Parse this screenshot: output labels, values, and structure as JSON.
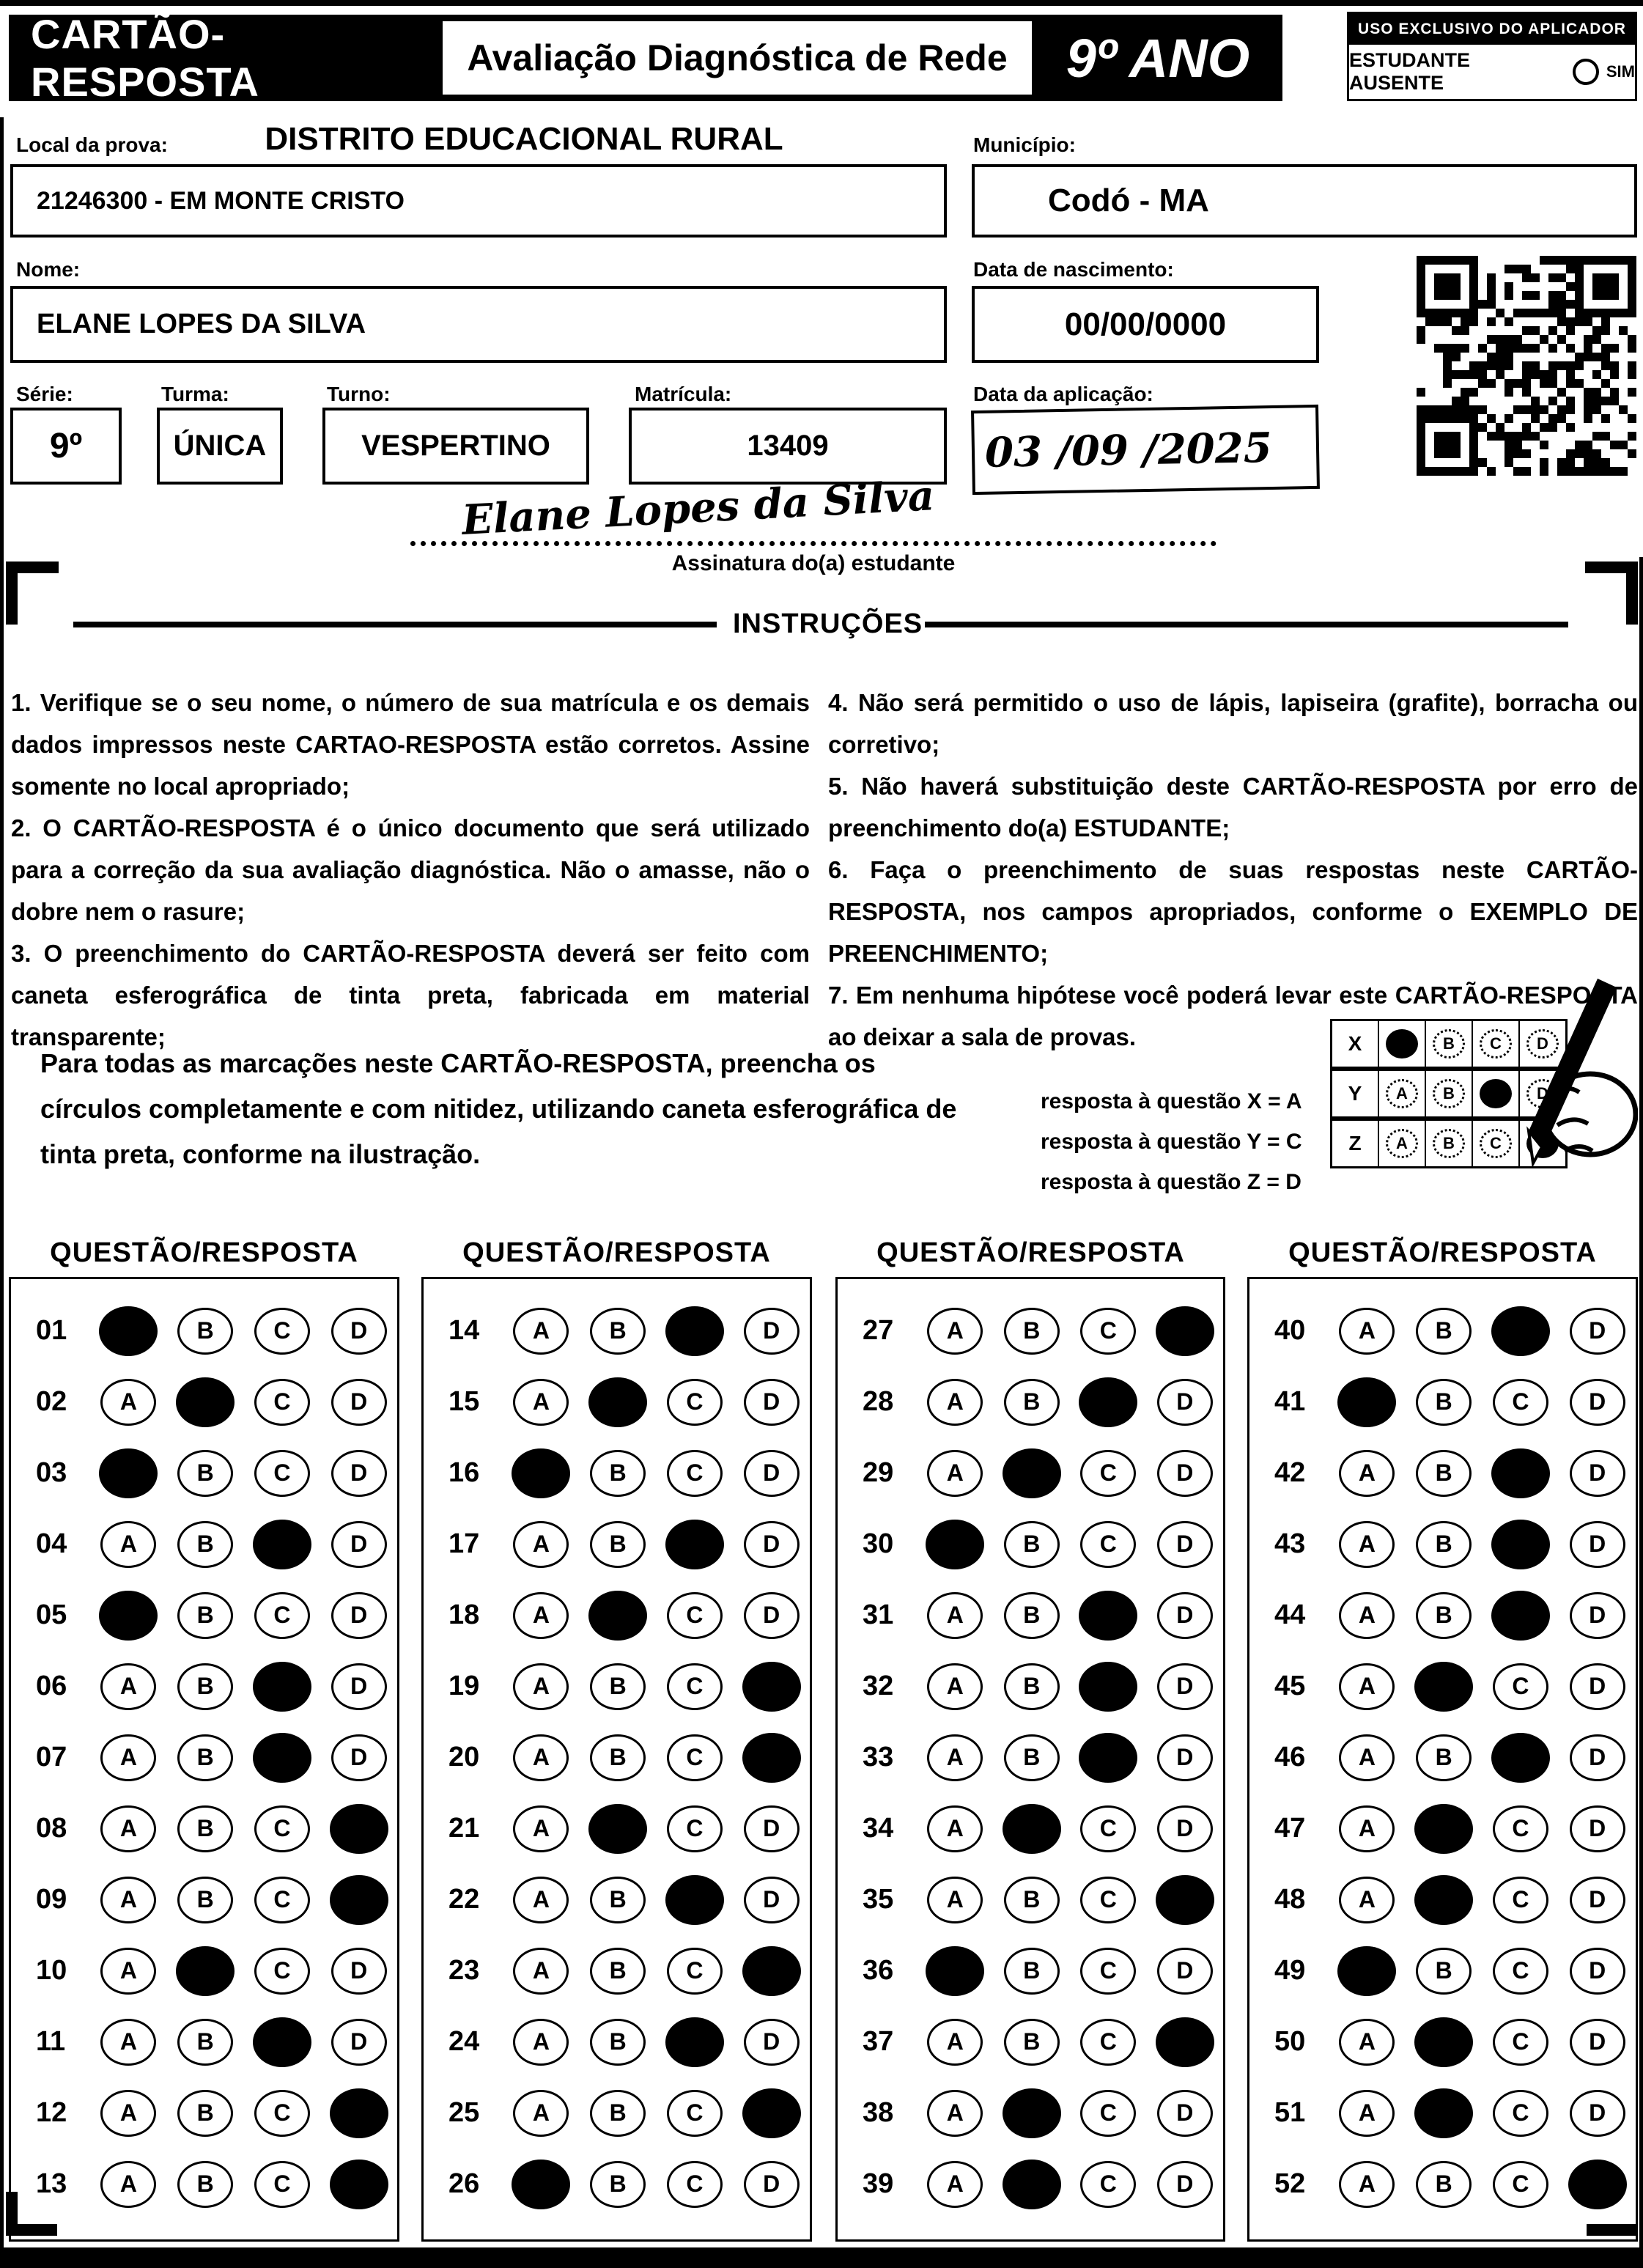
{
  "palette": {
    "ink": "#000000",
    "paper": "#ffffff"
  },
  "header": {
    "title": "CARTÃO-RESPOSTA",
    "subtitle": "Avaliação Diagnóstica de Rede",
    "grade": "9º ANO",
    "aplicador": {
      "title": "USO EXCLUSIVO DO APLICADOR",
      "absent_label": "ESTUDANTE AUSENTE",
      "sim_label": "SIM"
    }
  },
  "form": {
    "local_label": "Local da prova:",
    "district": "DISTRITO EDUCACIONAL RURAL",
    "school": "21246300 - EM MONTE CRISTO",
    "municipio_label": "Município:",
    "municipio": "Codó - MA",
    "nome_label": "Nome:",
    "nome": "ELANE LOPES DA SILVA",
    "nascimento_label": "Data de nascimento:",
    "nascimento": "00/00/0000",
    "serie_label": "Série:",
    "serie": "9º",
    "turma_label": "Turma:",
    "turma": "ÚNICA",
    "turno_label": "Turno:",
    "turno": "VESPERTINO",
    "matricula_label": "Matrícula:",
    "matricula": "13409",
    "aplicacao_label": "Data da aplicação:",
    "aplicacao_value": "03 /09 /2025",
    "signature": "Elane Lopes da Silva",
    "signature_label": "Assinatura do(a) estudante"
  },
  "instructions": {
    "title": "INSTRUÇÕES",
    "left": [
      "1. Verifique se o seu nome, o número de sua matrícula e os demais dados impressos neste CARTAO-RESPOSTA estão corretos. Assine somente no local apropriado;",
      "2. O CARTÃO-RESPOSTA é o único documento que será utilizado para a correção da sua avaliação diagnóstica. Não o amasse, não o dobre nem o rasure;",
      "3. O preenchimento do CARTÃO-RESPOSTA deverá ser feito com caneta esferográfica de tinta preta, fabricada em material transparente;"
    ],
    "right": [
      "4. Não será permitido o uso de lápis, lapiseira (grafite), borracha ou corretivo;",
      "5. Não haverá substituição deste CARTÃO-RESPOSTA por erro de preenchimento do(a) ESTUDANTE;",
      "6. Faça o preenchimento de suas respostas neste CARTÃO-RESPOSTA, nos campos apropriados, conforme o EXEMPLO DE PREENCHIMENTO;",
      "7. Em nenhuma hipótese você poderá levar este CARTÃO-RESPOSTA ao deixar a sala de provas."
    ],
    "fill_note": "Para todas as marcações neste CARTÃO-RESPOSTA, preencha os círculos completamente e com nitidez, utilizando caneta esferográfica de tinta preta, conforme na ilustração.",
    "example_lines": [
      "resposta à questão X = A",
      "resposta à questão Y = C",
      "resposta à questão Z = D"
    ],
    "example_rows": [
      {
        "label": "X",
        "answer": "A"
      },
      {
        "label": "Y",
        "answer": "C"
      },
      {
        "label": "Z",
        "answer": "D"
      }
    ]
  },
  "answers": {
    "column_header": "QUESTÃO/RESPOSTA",
    "options": [
      "A",
      "B",
      "C",
      "D"
    ],
    "columns": [
      {
        "questions": [
          {
            "n": "01",
            "a": "A"
          },
          {
            "n": "02",
            "a": "B"
          },
          {
            "n": "03",
            "a": "A"
          },
          {
            "n": "04",
            "a": "C"
          },
          {
            "n": "05",
            "a": "A"
          },
          {
            "n": "06",
            "a": "C"
          },
          {
            "n": "07",
            "a": "C"
          },
          {
            "n": "08",
            "a": "D"
          },
          {
            "n": "09",
            "a": "D"
          },
          {
            "n": "10",
            "a": "B"
          },
          {
            "n": "11",
            "a": "C"
          },
          {
            "n": "12",
            "a": "D"
          },
          {
            "n": "13",
            "a": "D"
          }
        ]
      },
      {
        "questions": [
          {
            "n": "14",
            "a": "C"
          },
          {
            "n": "15",
            "a": "B"
          },
          {
            "n": "16",
            "a": "A"
          },
          {
            "n": "17",
            "a": "C"
          },
          {
            "n": "18",
            "a": "B"
          },
          {
            "n": "19",
            "a": "D"
          },
          {
            "n": "20",
            "a": "D"
          },
          {
            "n": "21",
            "a": "B"
          },
          {
            "n": "22",
            "a": "C"
          },
          {
            "n": "23",
            "a": "D"
          },
          {
            "n": "24",
            "a": "C"
          },
          {
            "n": "25",
            "a": "D"
          },
          {
            "n": "26",
            "a": "A"
          }
        ]
      },
      {
        "questions": [
          {
            "n": "27",
            "a": "D"
          },
          {
            "n": "28",
            "a": "C"
          },
          {
            "n": "29",
            "a": "B"
          },
          {
            "n": "30",
            "a": "A"
          },
          {
            "n": "31",
            "a": "C"
          },
          {
            "n": "32",
            "a": "C"
          },
          {
            "n": "33",
            "a": "C"
          },
          {
            "n": "34",
            "a": "B"
          },
          {
            "n": "35",
            "a": "D"
          },
          {
            "n": "36",
            "a": "A"
          },
          {
            "n": "37",
            "a": "D"
          },
          {
            "n": "38",
            "a": "B"
          },
          {
            "n": "39",
            "a": "B"
          }
        ]
      },
      {
        "questions": [
          {
            "n": "40",
            "a": "C"
          },
          {
            "n": "41",
            "a": "A"
          },
          {
            "n": "42",
            "a": "C"
          },
          {
            "n": "43",
            "a": "C"
          },
          {
            "n": "44",
            "a": "C"
          },
          {
            "n": "45",
            "a": "B"
          },
          {
            "n": "46",
            "a": "C"
          },
          {
            "n": "47",
            "a": "B"
          },
          {
            "n": "48",
            "a": "B"
          },
          {
            "n": "49",
            "a": "A"
          },
          {
            "n": "50",
            "a": "B"
          },
          {
            "n": "51",
            "a": "B"
          },
          {
            "n": "52",
            "a": "D"
          }
        ]
      }
    ]
  }
}
